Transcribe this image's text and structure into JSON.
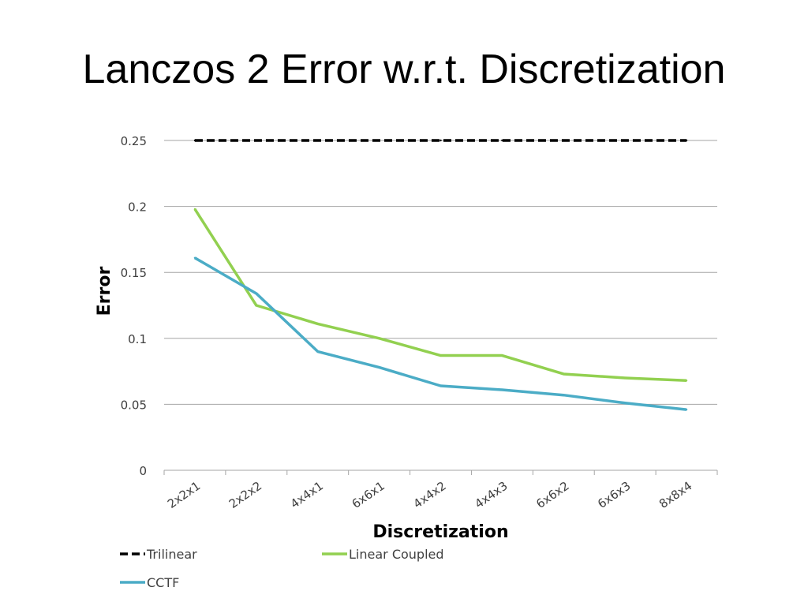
{
  "slide": {
    "title": "Lanczos 2 Error w.r.t. Discretization"
  },
  "chart_data": {
    "type": "line",
    "title": "",
    "xlabel": "Discretization",
    "ylabel": "Error",
    "categories": [
      "2x2x1",
      "2x2x2",
      "4x4x1",
      "6x6x1",
      "4x4x2",
      "4x4x3",
      "6x6x2",
      "6x6x3",
      "8x8x4"
    ],
    "ylim": [
      0,
      0.25
    ],
    "yticks": [
      "0",
      "0.05",
      "0.1",
      "0.15",
      "0.2",
      "0.25"
    ],
    "grid": "horizontal",
    "legend_position": "bottom",
    "series": [
      {
        "name": "Trilinear",
        "color": "#000000",
        "style": "dashed",
        "values": [
          0.25,
          0.25,
          0.25,
          0.25,
          0.25,
          0.25,
          0.25,
          0.25,
          0.25
        ]
      },
      {
        "name": "Linear Coupled",
        "color": "#92d050",
        "style": "solid",
        "values": [
          0.198,
          0.125,
          0.111,
          0.1,
          0.087,
          0.087,
          0.073,
          0.07,
          0.068
        ]
      },
      {
        "name": "CCTF",
        "color": "#4bacc6",
        "style": "solid",
        "values": [
          0.161,
          0.134,
          0.09,
          0.078,
          0.064,
          0.061,
          0.057,
          0.051,
          0.046
        ]
      }
    ]
  }
}
